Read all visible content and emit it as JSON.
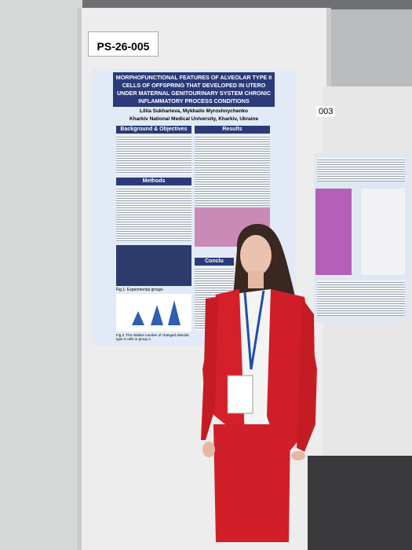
{
  "board": {
    "code": "PS-26-005",
    "neighbor_code": "003"
  },
  "poster": {
    "title": "MORPHOFUNCTIONAL FEATURES OF ALVEOLAR TYPE II CELLS OF OFFSPRING THAT DEVELOPED IN UTERO UNDER MATERNAL GENITOURINARY SYSTEM CHRONIC INFLAMMATORY PROCESS CONDITIONS",
    "authors": "Liliia Sukharieva, Mykhailo Myroshnychenko",
    "affiliation": "Kharkiv National Medical University, Kharkiv, Ukraine",
    "sections": [
      "Background & Objectives",
      "Methods",
      "Results",
      "Conclu"
    ],
    "captions": [
      "Fig.1. Experimental groups",
      "Fig.3. The relative number of changed alveolar type II cells in group 2."
    ]
  }
}
